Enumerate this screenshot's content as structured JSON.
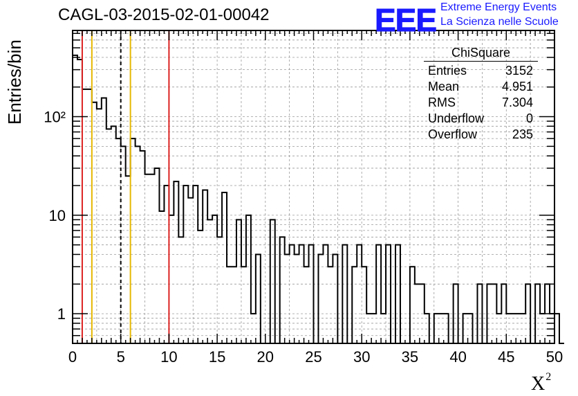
{
  "title": "CAGL-03-2015-02-01-00042",
  "logo": {
    "text": "EEE",
    "line1": "Extreme Energy Events",
    "line2": "La Scienza nelle Scuole",
    "color": "#1a1aff"
  },
  "stats": {
    "title": "ChiSquare",
    "rows": [
      {
        "label": "Entries",
        "value": "3152"
      },
      {
        "label": "Mean",
        "value": "4.951"
      },
      {
        "label": "RMS",
        "value": "7.304"
      },
      {
        "label": "Underflow",
        "value": "0"
      },
      {
        "label": "Overflow",
        "value": "235"
      }
    ]
  },
  "chart_data": {
    "type": "histogram",
    "title": "CAGL-03-2015-02-01-00042",
    "xlabel": "X",
    "xlabel_sup": "2",
    "ylabel": "Entries/bin",
    "xlim": [
      0,
      50
    ],
    "ylim": [
      0.5,
      750
    ],
    "yscale": "log",
    "grid": true,
    "bin_width": 0.5,
    "x_ticks": [
      0,
      5,
      10,
      15,
      20,
      25,
      30,
      35,
      40,
      45,
      50
    ],
    "x_tick_labels": [
      "0",
      "5",
      "10",
      "15",
      "20",
      "25",
      "30",
      "35",
      "40",
      "45",
      "50"
    ],
    "y_ticks": [
      1,
      10,
      100
    ],
    "y_tick_labels": [
      "1",
      "10",
      "10²"
    ],
    "values": [
      420,
      380,
      190,
      190,
      140,
      120,
      155,
      75,
      80,
      60,
      50,
      25,
      60,
      50,
      45,
      26,
      26,
      30,
      11,
      20,
      10,
      22,
      6,
      20,
      15,
      20,
      7,
      18,
      9,
      10,
      6,
      17,
      3,
      3,
      9,
      3,
      10,
      1,
      4,
      0,
      0,
      9,
      0,
      6,
      4,
      5,
      4,
      5,
      3,
      5,
      0,
      4,
      5,
      3,
      4,
      0,
      5,
      0,
      3,
      5,
      3,
      1,
      1,
      5,
      1,
      5,
      0,
      5,
      0,
      0,
      3,
      2,
      2,
      1,
      0,
      1,
      1,
      1,
      0,
      2,
      0,
      1,
      1,
      0,
      2,
      0,
      2,
      2,
      1,
      2,
      1,
      1,
      1,
      1,
      2,
      0,
      2,
      1,
      2,
      1,
      1,
      0
    ],
    "vlines": [
      {
        "x": 1,
        "color": "#dd2222",
        "style": "solid"
      },
      {
        "x": 2,
        "color": "#e6b800",
        "style": "solid"
      },
      {
        "x": 5,
        "color": "#000000",
        "style": "dashed"
      },
      {
        "x": 6,
        "color": "#e6b800",
        "style": "solid"
      },
      {
        "x": 10,
        "color": "#dd2222",
        "style": "solid"
      }
    ]
  }
}
